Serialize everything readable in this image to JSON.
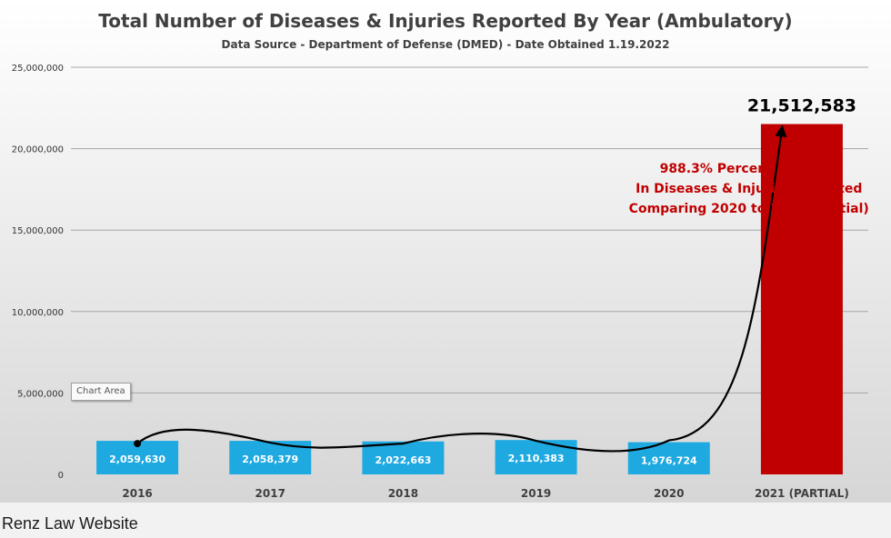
{
  "chart_data": {
    "type": "bar",
    "title": "Total Number of Diseases & Injuries Reported By Year (Ambulatory)",
    "subtitle": "Data Source - Department of Defense (DMED) - Date Obtained 1.19.2022",
    "categories": [
      "2016",
      "2017",
      "2018",
      "2019",
      "2020",
      "2021 (PARTIAL)"
    ],
    "values": [
      2059630,
      2058379,
      2022663,
      2110383,
      1976724,
      21512583
    ],
    "data_labels": [
      "2,059,630",
      "2,058,379",
      "2,022,663",
      "2,110,383",
      "1,976,724",
      "21,512,583"
    ],
    "bar_colors": [
      "#1fa9e1",
      "#1fa9e1",
      "#1fa9e1",
      "#1fa9e1",
      "#1fa9e1",
      "#c00000"
    ],
    "ylim": [
      0,
      25000000
    ],
    "yticks": [
      0,
      5000000,
      10000000,
      15000000,
      20000000,
      25000000
    ],
    "ytick_labels": [
      "0",
      "5,000,000",
      "10,000,000",
      "15,000,000",
      "20,000,000",
      "25,000,000"
    ],
    "grid": true,
    "annotation": {
      "lines": [
        "988.3% Percent Increase",
        "In Diseases & Injuries Reported",
        "Comparing 2020 to 2021 (Partial)"
      ],
      "color": "#c00000"
    },
    "xlabel": "",
    "ylabel": ""
  },
  "tooltip": "Chart Area",
  "caption": "Renz Law Website"
}
